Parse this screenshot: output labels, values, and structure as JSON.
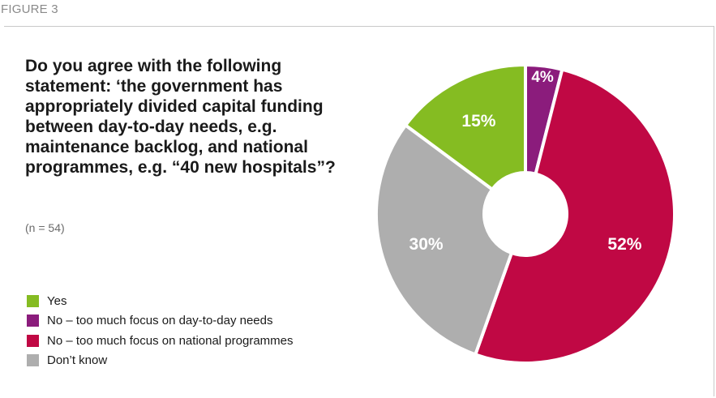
{
  "figure_label": "FIGURE 3",
  "question": "Do you agree with the following statement: ‘the government has appropriately divided capital funding between day-to-day needs, e.g. maintenance backlog, and national programmes, e.g. “40 new hospitals”?",
  "sample_note": "(n = 54)",
  "chart_data": {
    "type": "pie",
    "title": "Do you agree with the following statement: ‘the government has appropriately divided capital funding between day-to-day needs, e.g. maintenance backlog, and national programmes, e.g. “40 new hospitals”?",
    "donut": true,
    "legend_placement": "bottom-left",
    "slices": [
      {
        "label": "No – too much focus on day-to-day needs",
        "value": 4,
        "display": "4%",
        "color": "#8b1c7c"
      },
      {
        "label": "No – too much focus on national programmes",
        "value": 52,
        "display": "52%",
        "color": "#c00844"
      },
      {
        "label": "Don’t know",
        "value": 30,
        "display": "30%",
        "color": "#aeaeae"
      },
      {
        "label": "Yes",
        "value": 15,
        "display": "15%",
        "color": "#85bc22"
      }
    ],
    "legend": [
      {
        "label": "Yes",
        "color": "#85bc22"
      },
      {
        "label": "No – too much focus on day-to-day needs",
        "color": "#8b1c7c"
      },
      {
        "label": "No – too much focus on national programmes",
        "color": "#c00844"
      },
      {
        "label": "Don’t know",
        "color": "#aeaeae"
      }
    ]
  }
}
